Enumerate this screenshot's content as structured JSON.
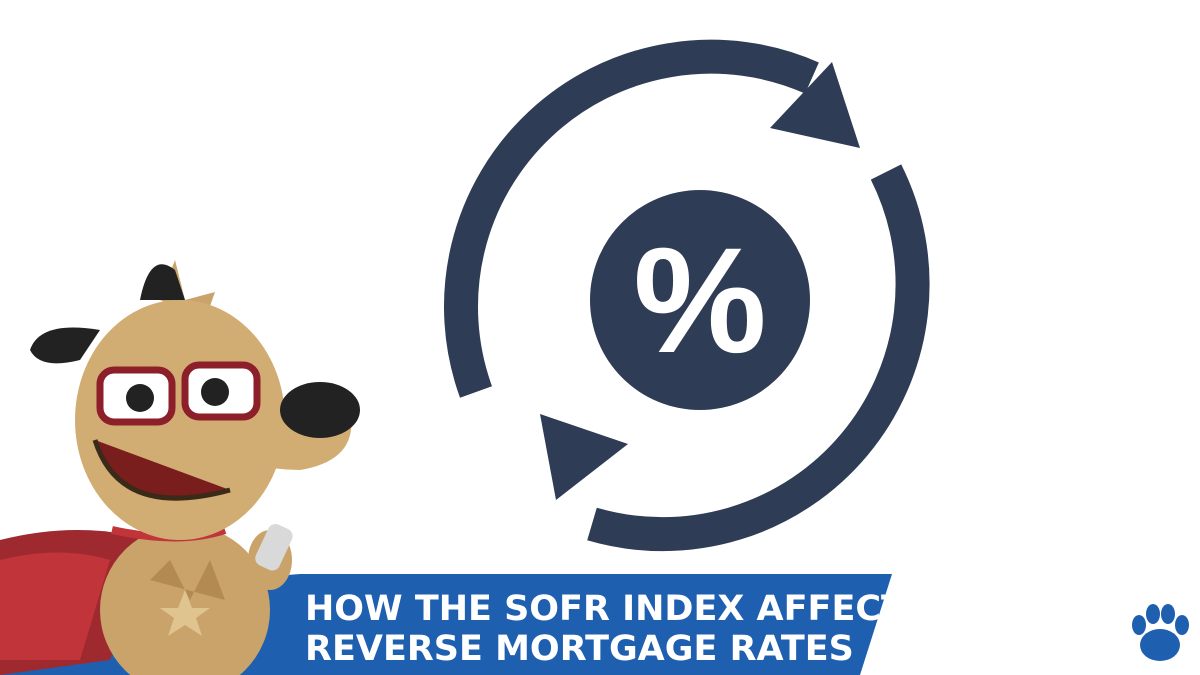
{
  "icon": {
    "symbol": "%"
  },
  "banner": {
    "lines": [
      "HOW THE SOFR INDEX AFFECTS",
      "REVERSE MORTGAGE RATES"
    ]
  }
}
